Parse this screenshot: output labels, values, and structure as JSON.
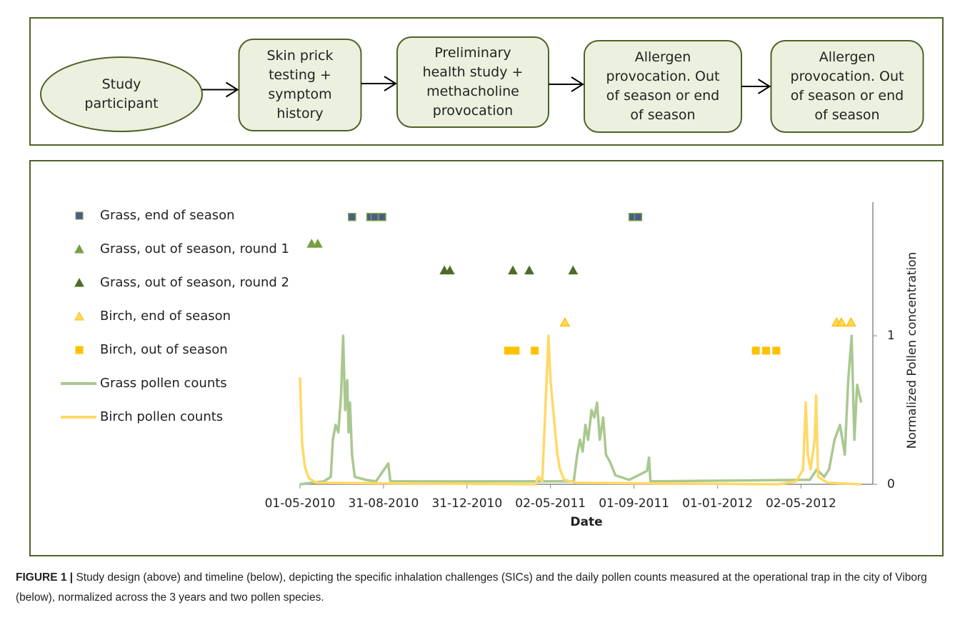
{
  "flow": {
    "nodes": [
      {
        "lines": [
          "Study",
          "participant"
        ]
      },
      {
        "lines": [
          "Skin prick",
          "testing +",
          "symptom",
          "history"
        ]
      },
      {
        "lines": [
          "Preliminary",
          "health study +",
          "methacholine",
          "provocation"
        ]
      },
      {
        "lines": [
          "Allergen",
          "provocation. Out",
          "of season or end",
          "of season"
        ]
      },
      {
        "lines": [
          "Allergen",
          "provocation. Out",
          "of season or end",
          "of season"
        ]
      }
    ]
  },
  "chart_data": {
    "type": "scatter",
    "x_label": "Date",
    "y_label": "Normalized Pollen concentration",
    "xlim": [
      "2010-05-01",
      "2012-08-15"
    ],
    "xticks": [
      {
        "value": "2010-05-01",
        "label": "01-05-2010"
      },
      {
        "value": "2010-08-31",
        "label": "31-08-2010"
      },
      {
        "value": "2010-12-31",
        "label": "31-12-2010"
      },
      {
        "value": "2011-05-02",
        "label": "02-05-2011"
      },
      {
        "value": "2011-09-01",
        "label": "01-09-2011"
      },
      {
        "value": "2012-01-01",
        "label": "01-01-2012"
      },
      {
        "value": "2012-05-02",
        "label": "02-05-2012"
      }
    ],
    "ylim": [
      0,
      1.9
    ],
    "yticks": [
      0,
      1
    ],
    "y_axis_side": "right",
    "legend": "upper left",
    "series": [
      {
        "name": "Grass, end of season",
        "marker": "square",
        "color": "#4b5a8c",
        "edge": "#77a043",
        "x": [
          "2010-07-16",
          "2010-08-12",
          "2010-08-18",
          "2010-08-29",
          "2011-08-30",
          "2011-09-07"
        ],
        "values": [
          1.8,
          1.8,
          1.8,
          1.8,
          1.8,
          1.8
        ]
      },
      {
        "name": "Grass, out of season, round 1",
        "marker": "triangle",
        "color": "#77a043",
        "x": [
          "2010-05-18",
          "2010-05-27"
        ],
        "values": [
          1.62,
          1.62
        ]
      },
      {
        "name": "Grass, out of season, round 2",
        "marker": "triangle",
        "color": "#4e6b28",
        "x": [
          "2010-11-28",
          "2010-12-06",
          "2011-03-08",
          "2011-04-01",
          "2011-06-04"
        ],
        "values": [
          1.44,
          1.44,
          1.44,
          1.44,
          1.44
        ]
      },
      {
        "name": "Birch, end of season",
        "marker": "triangle",
        "color": "#ffd966",
        "edge": "#ffc000",
        "x": [
          "2011-05-23",
          "2012-06-23",
          "2012-06-30",
          "2012-07-14"
        ],
        "values": [
          1.09,
          1.09,
          1.09,
          1.09
        ]
      },
      {
        "name": "Birch, out of season",
        "marker": "square",
        "color": "#ffc000",
        "x": [
          "2011-03-01",
          "2011-03-12",
          "2011-04-09",
          "2012-02-26",
          "2012-03-12",
          "2012-03-27"
        ],
        "values": [
          0.9,
          0.9,
          0.9,
          0.9,
          0.9,
          0.9
        ]
      },
      {
        "name": "Grass pollen counts",
        "marker": "line",
        "color": "#a9c88f",
        "x": [
          "2010-05-01",
          "2010-06-05",
          "2010-06-15",
          "2010-06-18",
          "2010-06-22",
          "2010-06-26",
          "2010-06-30",
          "2010-07-03",
          "2010-07-06",
          "2010-07-09",
          "2010-07-11",
          "2010-07-13",
          "2010-07-16",
          "2010-07-20",
          "2010-08-05",
          "2010-08-20",
          "2010-09-07",
          "2010-09-10",
          "2011-06-05",
          "2011-06-10",
          "2011-06-14",
          "2011-06-18",
          "2011-06-22",
          "2011-06-26",
          "2011-07-01",
          "2011-07-05",
          "2011-07-09",
          "2011-07-13",
          "2011-07-18",
          "2011-07-22",
          "2011-07-28",
          "2011-08-05",
          "2011-08-25",
          "2011-09-20",
          "2011-09-23",
          "2011-09-25",
          "2012-05-15",
          "2012-05-25",
          "2012-06-05",
          "2012-06-12",
          "2012-06-20",
          "2012-06-28",
          "2012-07-05",
          "2012-07-10",
          "2012-07-15",
          "2012-07-19",
          "2012-07-23",
          "2012-07-29"
        ],
        "values": [
          0,
          0.02,
          0.05,
          0.3,
          0.4,
          0.35,
          0.6,
          1.0,
          0.5,
          0.7,
          0.35,
          0.55,
          0.2,
          0.05,
          0.03,
          0.02,
          0.14,
          0.02,
          0.02,
          0.2,
          0.3,
          0.22,
          0.4,
          0.3,
          0.5,
          0.45,
          0.55,
          0.3,
          0.45,
          0.2,
          0.15,
          0.06,
          0.03,
          0.09,
          0.18,
          0.02,
          0.03,
          0.1,
          0.05,
          0.1,
          0.3,
          0.4,
          0.2,
          0.7,
          1.0,
          0.3,
          0.67,
          0.55
        ]
      },
      {
        "name": "Birch pollen counts",
        "marker": "line",
        "color": "#ffd966",
        "x": [
          "2010-05-01",
          "2010-05-04",
          "2010-05-08",
          "2010-05-14",
          "2010-05-25",
          "2011-04-10",
          "2011-04-14",
          "2011-04-20",
          "2011-04-29",
          "2011-05-02",
          "2011-05-05",
          "2011-05-08",
          "2011-05-12",
          "2011-05-16",
          "2011-05-22",
          "2011-06-10",
          "2012-03-30",
          "2012-04-25",
          "2012-05-05",
          "2012-05-09",
          "2012-05-12",
          "2012-05-16",
          "2012-05-22",
          "2012-05-24",
          "2012-05-27",
          "2012-06-10",
          "2012-07-29"
        ],
        "values": [
          0.72,
          0.28,
          0.12,
          0.04,
          0.01,
          0,
          0.05,
          0.02,
          1.0,
          0.7,
          0.55,
          0.4,
          0.2,
          0.1,
          0.03,
          0.01,
          0,
          0.02,
          0.1,
          0.55,
          0.2,
          0.1,
          0.3,
          0.6,
          0.05,
          0.01,
          0
        ]
      }
    ]
  },
  "caption": {
    "label": "FIGURE 1 |",
    "text": "Study design (above) and timeline (below), depicting the specific inhalation challenges (SICs) and the daily pollen counts measured at the operational trap in the city of Viborg (below), normalized across the 3 years and two pollen species."
  }
}
